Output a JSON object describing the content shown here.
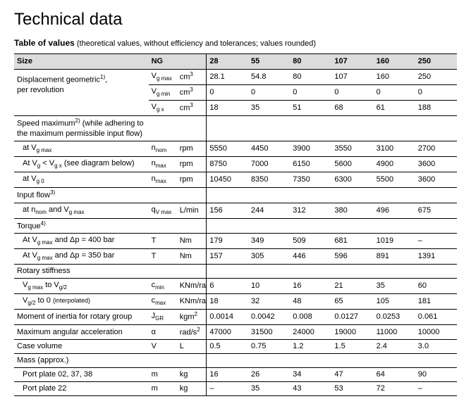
{
  "title": "Technical data",
  "subhead_bold": "Table of values",
  "subhead_rest": "(theoretical values, without efficiency and tolerances; values rounded)",
  "columns": {
    "size": "Size",
    "ng": "NG",
    "c1": "28",
    "c2": "55",
    "c3": "80",
    "c4": "107",
    "c5": "160",
    "c6": "250"
  },
  "rows": {
    "disp_label_a": "Displacement geometric",
    "disp_label_a_sup": "1)",
    "disp_label_b": "per revolution",
    "vgmax": {
      "sym": "V",
      "sub": "g max",
      "unit": "cm",
      "usup": "3",
      "v": [
        "28.1",
        "54.8",
        "80",
        "107",
        "160",
        "250"
      ]
    },
    "vgmin": {
      "sym": "V",
      "sub": "g min",
      "unit": "cm",
      "usup": "3",
      "v": [
        "0",
        "0",
        "0",
        "0",
        "0",
        "0"
      ]
    },
    "vgx": {
      "sym": "V",
      "sub": "g x",
      "unit": "cm",
      "usup": "3",
      "v": [
        "18",
        "35",
        "51",
        "68",
        "61",
        "188"
      ]
    },
    "speed_a": "Speed maximum",
    "speed_a_sup": "2)",
    "speed_a2": " (while adhering to",
    "speed_b": "the maximum permissible input flow)",
    "sp1": {
      "label": "at V",
      "lsub": "g max",
      "sym": "n",
      "sub": "nom",
      "unit": "rpm",
      "v": [
        "5550",
        "4450",
        "3900",
        "3550",
        "3100",
        "2700"
      ]
    },
    "sp2": {
      "label": "At V",
      "lsub": "g",
      "label2": " < V",
      "lsub2": "g x",
      "label3": " (see diagram below)",
      "sym": "n",
      "sub": "max",
      "unit": "rpm",
      "v": [
        "8750",
        "7000",
        "6150",
        "5600",
        "4900",
        "3600"
      ]
    },
    "sp3": {
      "label": "at V",
      "lsub": "g 0",
      "sym": "n",
      "sub": "max",
      "unit": "rpm",
      "v": [
        "10450",
        "8350",
        "7350",
        "6300",
        "5500",
        "3600"
      ]
    },
    "inflow": "Input flow",
    "inflow_sup": "3)",
    "if1": {
      "label": "at n",
      "lsub": "nom",
      "label2": " and V",
      "lsub2": "g max",
      "sym": "q",
      "sub": "V max",
      "unit": "L/min",
      "v": [
        "156",
        "244",
        "312",
        "380",
        "496",
        "675"
      ]
    },
    "torque": "Torque",
    "torque_sup": "4)",
    "tq1": {
      "label": "At V",
      "lsub": "g max",
      "label2": " and Δp = 400 bar",
      "sym": "T",
      "unit": "Nm",
      "v": [
        "179",
        "349",
        "509",
        "681",
        "1019",
        "–"
      ]
    },
    "tq2": {
      "label": "At V",
      "lsub": "g max",
      "label2": " and Δp = 350 bar",
      "sym": "T",
      "unit": "Nm",
      "v": [
        "157",
        "305",
        "446",
        "596",
        "891",
        "1391"
      ]
    },
    "rotary": "Rotary stiffness",
    "rs1": {
      "label": "V",
      "lsub": "g max",
      "label2": " to V",
      "lsub2": "g/2",
      "sym": "c",
      "sub": "min",
      "unit": "KNm/rad",
      "v": [
        "6",
        "10",
        "16",
        "21",
        "35",
        "60"
      ]
    },
    "rs2": {
      "label": "V",
      "lsub": "g/2",
      "label2": " to 0 ",
      "tiny": "(interpolated)",
      "sym": "c",
      "sub": "max",
      "unit": "KNm/rad",
      "v": [
        "18",
        "32",
        "48",
        "65",
        "105",
        "181"
      ]
    },
    "moi": {
      "label": "Moment of inertia for rotary group",
      "sym": "J",
      "sub": "GR",
      "unit": "kgm",
      "usup": "2",
      "v": [
        "0.0014",
        "0.0042",
        "0.008",
        "0.0127",
        "0.0253",
        "0.061"
      ]
    },
    "maa": {
      "label": "Maximum angular acceleration",
      "sym": "α",
      "unit": "rad/s",
      "usup": "2",
      "v": [
        "47000",
        "31500",
        "24000",
        "19000",
        "11000",
        "10000"
      ]
    },
    "casev": {
      "label": "Case volume",
      "sym": "V",
      "unit": "L",
      "v": [
        "0.5",
        "0.75",
        "1.2",
        "1.5",
        "2.4",
        "3.0"
      ]
    },
    "mass": "Mass (approx.)",
    "m1": {
      "label": "Port plate 02, 37, 38",
      "sym": "m",
      "unit": "kg",
      "v": [
        "16",
        "26",
        "34",
        "47",
        "64",
        "90"
      ]
    },
    "m2": {
      "label": "Port plate 22",
      "sym": "m",
      "unit": "kg",
      "v": [
        "–",
        "35",
        "43",
        "53",
        "72",
        "–"
      ]
    }
  }
}
